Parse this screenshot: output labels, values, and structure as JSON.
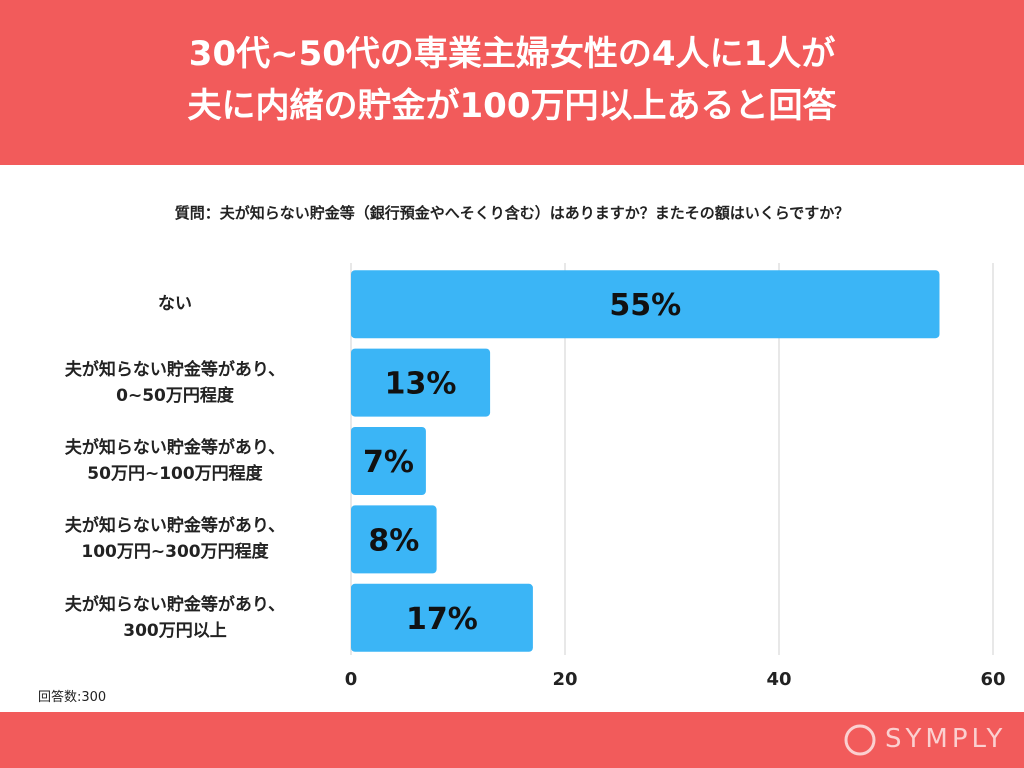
{
  "chart_data": {
    "type": "bar",
    "orientation": "horizontal",
    "title": "30代~50代の専業主婦女性の4人に1人が\n夫に内緒の貯金が100万円以上あると回答",
    "subtitle": "質問：夫が知らない貯金等（銀行預金やへそくり含む）はありますか？またその額はいくらですか？",
    "categories": [
      "ない",
      "夫が知らない貯金等があり、\n0~50万円程度",
      "夫が知らない貯金等があり、\n50万円~100万円程度",
      "夫が知らない貯金等があり、\n100万円~300万円程度",
      "夫が知らない貯金等があり、\n300万円以上"
    ],
    "values": [
      55,
      13,
      7,
      8,
      17
    ],
    "value_labels": [
      "55%",
      "13%",
      "7%",
      "8%",
      "17%"
    ],
    "color": "#3bb5f6",
    "xlim": [
      0,
      60
    ],
    "xticks": [
      0,
      20,
      40,
      60
    ],
    "grid": true,
    "note": "回答数:300",
    "brand": "SYMPLY"
  }
}
